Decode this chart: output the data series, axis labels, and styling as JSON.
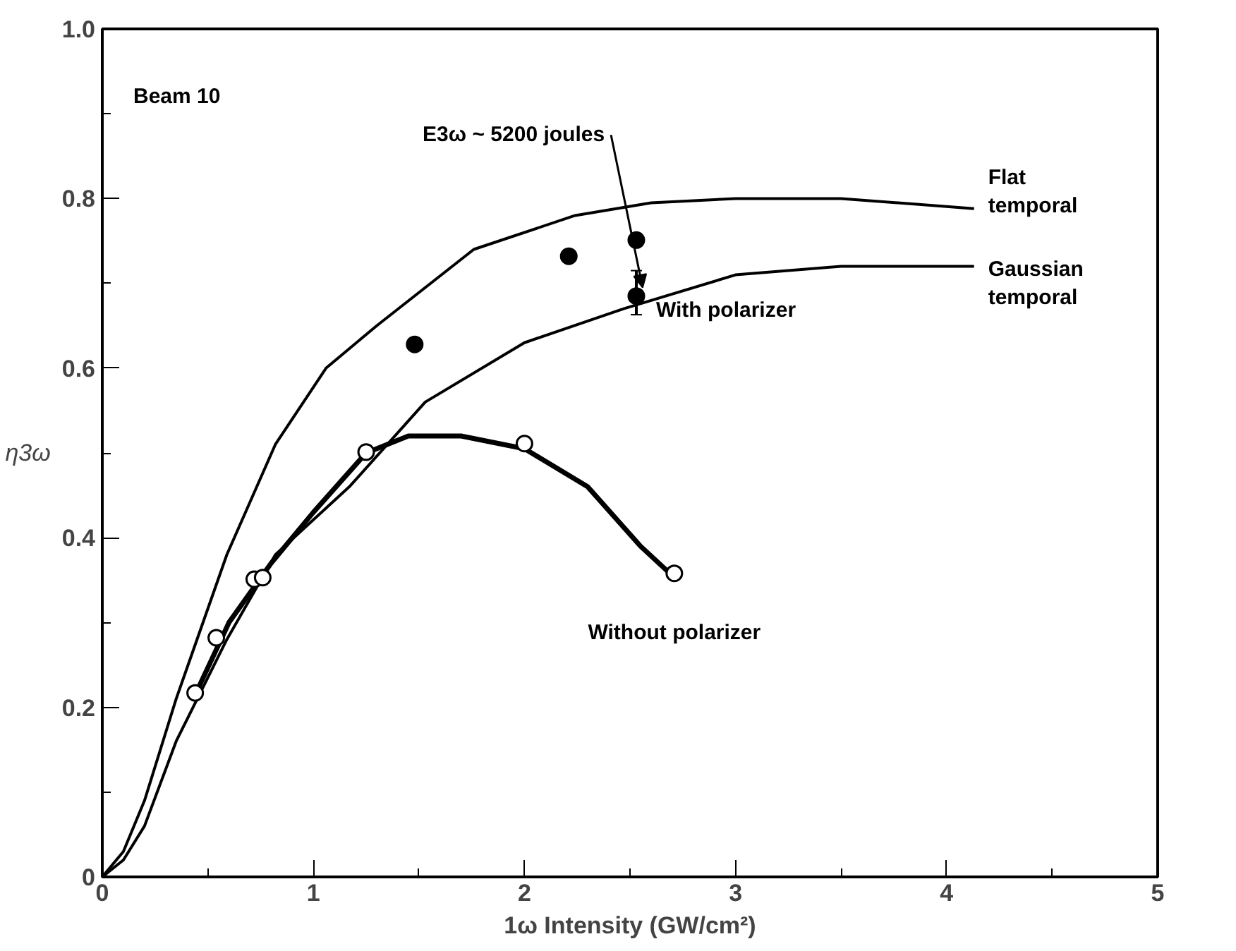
{
  "chart_data": {
    "type": "line",
    "xlabel": "1ω Intensity (GW/cm²)",
    "ylabel": "η3ω",
    "xlim": [
      0,
      5
    ],
    "ylim": [
      0,
      1.0
    ],
    "xticks": [
      0,
      1,
      2,
      3,
      4,
      5
    ],
    "yticks": [
      0,
      0.2,
      0.4,
      0.6,
      0.8,
      {
        "value": 1.0,
        "label": "1.0"
      }
    ],
    "grid": false,
    "annotations": [
      "Beam 10",
      {
        "text": "E3ω ~ 5200 joules",
        "x": 2.53,
        "y": 0.685
      },
      "With polarizer",
      "Without polarizer"
    ],
    "series": [
      {
        "name": "Flat temporal",
        "color": "#000000",
        "x": [
          0,
          0.1,
          0.2,
          0.35,
          0.59,
          0.82,
          1.06,
          1.3,
          1.76,
          2.24,
          2.6,
          3.0,
          3.5,
          4.13
        ],
        "values": [
          0,
          0.03,
          0.09,
          0.21,
          0.38,
          0.51,
          0.6,
          0.65,
          0.74,
          0.78,
          0.795,
          0.8,
          0.8,
          0.788
        ]
      },
      {
        "name": "Gaussian temporal",
        "color": "#000000",
        "x": [
          0,
          0.1,
          0.2,
          0.35,
          0.59,
          0.82,
          1.17,
          1.53,
          2.0,
          2.47,
          3.0,
          3.5,
          4.13
        ],
        "values": [
          0,
          0.02,
          0.06,
          0.16,
          0.28,
          0.38,
          0.46,
          0.56,
          0.63,
          0.67,
          0.71,
          0.72,
          0.72
        ]
      },
      {
        "color": "#000000",
        "x": [
          0.45,
          0.6,
          0.8,
          1.0,
          1.25,
          1.45,
          1.7,
          2.0,
          2.3,
          2.55,
          2.68
        ],
        "values": [
          0.22,
          0.3,
          0.37,
          0.43,
          0.5,
          0.52,
          0.52,
          0.505,
          0.46,
          0.39,
          0.36
        ]
      },
      {
        "type": "scatter",
        "marker": "circle",
        "color": "#000000",
        "x": [
          1.48,
          2.21,
          2.53,
          2.53
        ],
        "values": [
          0.628,
          0.732,
          0.751,
          0.685
        ],
        "errors": [
          null,
          null,
          null,
          [
            0.663,
            0.715
          ]
        ]
      },
      {
        "type": "scatter",
        "marker": "circle",
        "color": "#ffffff",
        "x": [
          0.44,
          0.54,
          0.72,
          0.76,
          1.25,
          2.0,
          2.71
        ],
        "values": [
          0.217,
          0.282,
          0.351,
          0.353,
          0.501,
          0.511,
          0.358
        ]
      }
    ]
  }
}
